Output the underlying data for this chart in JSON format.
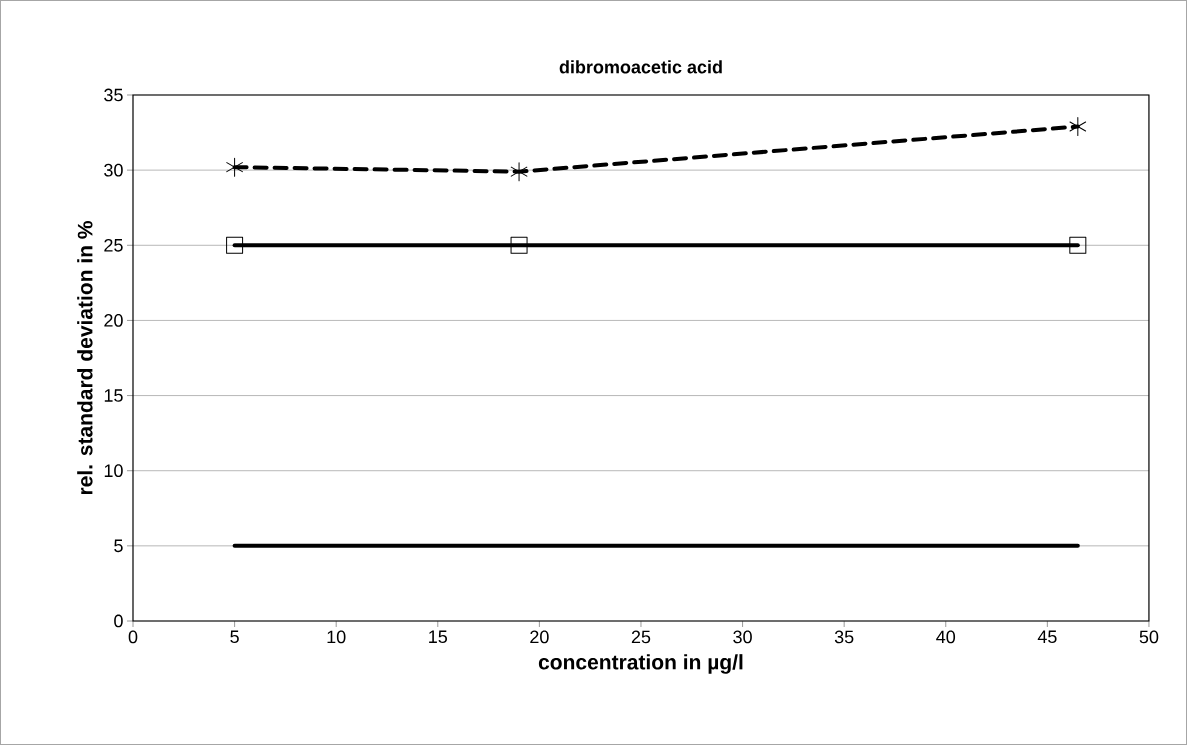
{
  "chart_data": {
    "type": "line",
    "title": "dibromoacetic acid",
    "xlabel": "concentration in µg/l",
    "ylabel": "rel. standard deviation in %",
    "x": [
      5,
      19,
      46.5
    ],
    "series": [
      {
        "color": "#000000",
        "values": [
          30.2,
          29.9,
          32.9
        ],
        "marker": "cross",
        "line_style": "dashed"
      },
      {
        "color": "#000000",
        "values": [
          25,
          25,
          25
        ],
        "marker": "square",
        "line_style": "solid"
      },
      {
        "color": "#000000",
        "values": [
          5,
          5,
          5
        ],
        "marker": "none",
        "line_style": "solid"
      }
    ],
    "xlim": [
      0,
      50
    ],
    "ylim": [
      0,
      35
    ],
    "xticks": [
      0,
      5,
      10,
      15,
      20,
      25,
      30,
      35,
      40,
      45,
      50
    ],
    "yticks": [
      0,
      5,
      10,
      15,
      20,
      25,
      30,
      35
    ],
    "grid": "y"
  }
}
